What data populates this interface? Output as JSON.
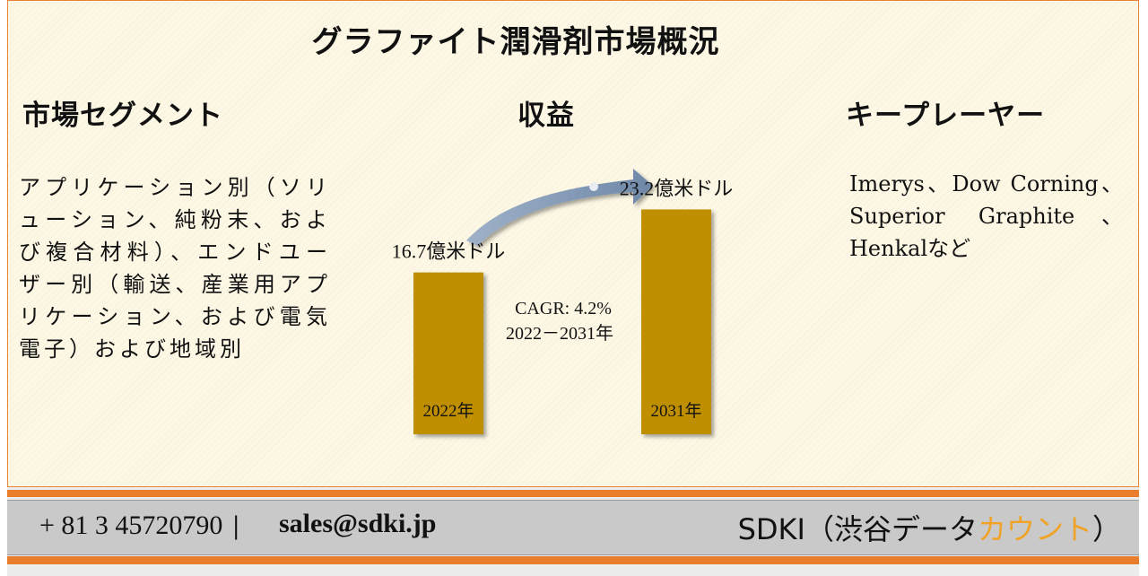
{
  "title": "グラファイト潤滑剤市場概況",
  "headers": {
    "segment": "市場セグメント",
    "revenue": "収益",
    "players": "キープレーヤー"
  },
  "segments_text": "アプリケーション別（ソリューション、純粉末、および複合材料）、エンドユーザー別（輸送、産業用アプリケーション、および電気電子）および地域別",
  "players_text": "Imerys、Dow Corning、Superior Graphite、Henkalなど",
  "chart_data": {
    "type": "bar",
    "categories": [
      "2022年",
      "2031年"
    ],
    "values": [
      16.7,
      23.2
    ],
    "value_labels": [
      "16.7億米ドル",
      "23.2億米ドル"
    ],
    "annotation": {
      "line1": "CAGR: 4.2%",
      "line2": "2022－2031年"
    },
    "bar_color": "#bf8f00",
    "grid": false
  },
  "footer": {
    "phone": "+ 81 3 45720790",
    "separator": "|",
    "email": "sales@sdki.jp",
    "brand_main": "SDKI（渋谷データ",
    "brand_accent": "カウント",
    "brand_close": "）"
  },
  "colors": {
    "accent": "#e87e2c",
    "arrow": "#7f96b4",
    "brand_accent": "#f0a326"
  }
}
